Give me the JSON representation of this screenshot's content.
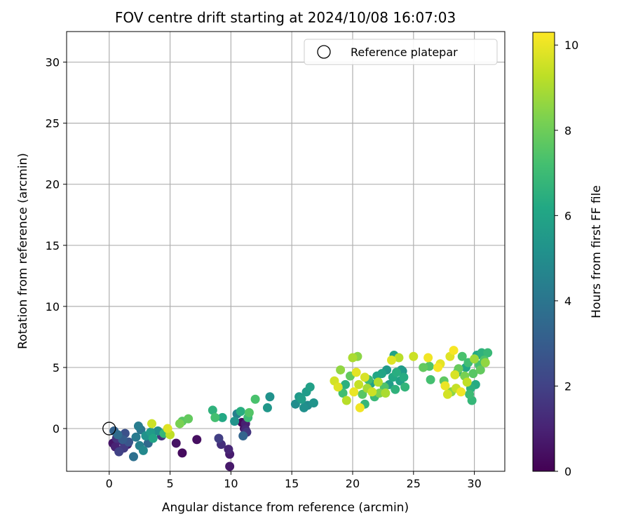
{
  "chart_data": {
    "type": "scatter",
    "title": "FOV centre drift starting at 2024/10/08 16:07:03",
    "xlabel": "Angular distance from reference (arcmin)",
    "ylabel": "Rotation from reference (arcmin)",
    "xlim": [
      -3.5,
      32.5
    ],
    "ylim": [
      -3.5,
      32.5
    ],
    "xticks": [
      0,
      5,
      10,
      15,
      20,
      25,
      30
    ],
    "yticks": [
      0,
      5,
      10,
      15,
      20,
      25,
      30
    ],
    "grid": true,
    "legend": {
      "position": "top-right",
      "entries": [
        "Reference platepar"
      ]
    },
    "reference_point": {
      "x": 0,
      "y": 0,
      "label": "Reference platepar"
    },
    "colorbar": {
      "label": "Hours from first FF file",
      "range": [
        0,
        10.3
      ],
      "ticks": [
        0,
        2,
        4,
        6,
        8,
        10
      ],
      "colormap": "viridis"
    },
    "points": [
      {
        "x": 0.3,
        "y": -1.2,
        "h": 0.6
      },
      {
        "x": 0.5,
        "y": -1.5,
        "h": 1.0
      },
      {
        "x": 0.6,
        "y": -0.8,
        "h": 1.5
      },
      {
        "x": 0.8,
        "y": -1.9,
        "h": 2.0
      },
      {
        "x": 1.0,
        "y": -1.0,
        "h": 1.2
      },
      {
        "x": 1.2,
        "y": -1.6,
        "h": 1.8
      },
      {
        "x": 1.3,
        "y": -0.4,
        "h": 2.5
      },
      {
        "x": 1.5,
        "y": -1.3,
        "h": 0.9
      },
      {
        "x": 0.4,
        "y": -0.2,
        "h": 3.2
      },
      {
        "x": 0.7,
        "y": -0.5,
        "h": 3.6
      },
      {
        "x": 1.1,
        "y": -0.9,
        "h": 3.0
      },
      {
        "x": 1.6,
        "y": -1.1,
        "h": 2.7
      },
      {
        "x": 2.0,
        "y": -2.3,
        "h": 3.8
      },
      {
        "x": 2.2,
        "y": -0.7,
        "h": 4.2
      },
      {
        "x": 2.5,
        "y": -1.4,
        "h": 4.5
      },
      {
        "x": 2.6,
        "y": -0.1,
        "h": 4.0
      },
      {
        "x": 2.8,
        "y": -1.8,
        "h": 4.8
      },
      {
        "x": 3.0,
        "y": -0.6,
        "h": 5.2
      },
      {
        "x": 3.2,
        "y": -1.2,
        "h": 3.5
      },
      {
        "x": 2.4,
        "y": 0.2,
        "h": 4.3
      },
      {
        "x": 3.4,
        "y": -0.3,
        "h": 5.6
      },
      {
        "x": 3.5,
        "y": 0.4,
        "h": 9.5
      },
      {
        "x": 3.6,
        "y": -0.8,
        "h": 6.0
      },
      {
        "x": 4.0,
        "y": -0.2,
        "h": 5.0
      },
      {
        "x": 4.3,
        "y": -0.6,
        "h": 1.5
      },
      {
        "x": 4.5,
        "y": -0.4,
        "h": 6.8
      },
      {
        "x": 4.8,
        "y": 0.0,
        "h": 9.8
      },
      {
        "x": 5.0,
        "y": -0.5,
        "h": 9.3
      },
      {
        "x": 5.5,
        "y": -1.2,
        "h": 0.5
      },
      {
        "x": 5.8,
        "y": 0.4,
        "h": 8.2
      },
      {
        "x": 6.0,
        "y": 0.6,
        "h": 7.6
      },
      {
        "x": 6.0,
        "y": -2.0,
        "h": 0.3
      },
      {
        "x": 6.5,
        "y": 0.8,
        "h": 7.8
      },
      {
        "x": 7.2,
        "y": -0.9,
        "h": 0.4
      },
      {
        "x": 8.5,
        "y": 1.5,
        "h": 6.6
      },
      {
        "x": 8.7,
        "y": 0.9,
        "h": 7.2
      },
      {
        "x": 9.0,
        "y": -0.8,
        "h": 1.9
      },
      {
        "x": 9.2,
        "y": -1.3,
        "h": 1.4
      },
      {
        "x": 9.3,
        "y": 0.9,
        "h": 6.2
      },
      {
        "x": 9.8,
        "y": -1.7,
        "h": 1.1
      },
      {
        "x": 9.9,
        "y": -2.1,
        "h": 0.8
      },
      {
        "x": 9.9,
        "y": -3.1,
        "h": 0.7
      },
      {
        "x": 10.3,
        "y": 0.6,
        "h": 5.3
      },
      {
        "x": 10.5,
        "y": 1.2,
        "h": 4.4
      },
      {
        "x": 10.8,
        "y": 1.4,
        "h": 6.4
      },
      {
        "x": 10.9,
        "y": 0.5,
        "h": 0.2
      },
      {
        "x": 11.0,
        "y": -0.6,
        "h": 3.3
      },
      {
        "x": 11.1,
        "y": 0.0,
        "h": 0.5
      },
      {
        "x": 11.2,
        "y": 0.4,
        "h": 0.9
      },
      {
        "x": 11.3,
        "y": -0.3,
        "h": 1.6
      },
      {
        "x": 11.4,
        "y": 0.9,
        "h": 7.0
      },
      {
        "x": 11.5,
        "y": 1.3,
        "h": 7.5
      },
      {
        "x": 11.2,
        "y": -0.1,
        "h": 1.2
      },
      {
        "x": 12.0,
        "y": 2.4,
        "h": 7.3
      },
      {
        "x": 13.0,
        "y": 1.7,
        "h": 5.4
      },
      {
        "x": 13.2,
        "y": 2.6,
        "h": 5.2
      },
      {
        "x": 15.3,
        "y": 2.0,
        "h": 5.0
      },
      {
        "x": 15.6,
        "y": 2.6,
        "h": 5.5
      },
      {
        "x": 16.0,
        "y": 1.7,
        "h": 5.1
      },
      {
        "x": 16.2,
        "y": 3.0,
        "h": 5.6
      },
      {
        "x": 16.5,
        "y": 3.4,
        "h": 5.8
      },
      {
        "x": 16.3,
        "y": 1.9,
        "h": 4.9
      },
      {
        "x": 16.8,
        "y": 2.1,
        "h": 5.3
      },
      {
        "x": 15.8,
        "y": 2.4,
        "h": 5.7
      },
      {
        "x": 18.5,
        "y": 3.9,
        "h": 9.6
      },
      {
        "x": 18.8,
        "y": 3.4,
        "h": 9.8
      },
      {
        "x": 19.0,
        "y": 4.8,
        "h": 8.6
      },
      {
        "x": 19.2,
        "y": 2.9,
        "h": 7.1
      },
      {
        "x": 19.4,
        "y": 3.6,
        "h": 6.5
      },
      {
        "x": 19.5,
        "y": 2.3,
        "h": 9.2
      },
      {
        "x": 19.8,
        "y": 4.3,
        "h": 7.8
      },
      {
        "x": 20.0,
        "y": 5.8,
        "h": 9.0
      },
      {
        "x": 20.1,
        "y": 3.0,
        "h": 10.0
      },
      {
        "x": 20.3,
        "y": 4.6,
        "h": 9.9
      },
      {
        "x": 20.4,
        "y": 5.9,
        "h": 8.5
      },
      {
        "x": 20.5,
        "y": 3.6,
        "h": 9.4
      },
      {
        "x": 20.6,
        "y": 1.7,
        "h": 10.1
      },
      {
        "x": 20.8,
        "y": 2.8,
        "h": 7.6
      },
      {
        "x": 21.0,
        "y": 4.2,
        "h": 9.7
      },
      {
        "x": 21.0,
        "y": 2.0,
        "h": 6.8
      },
      {
        "x": 21.2,
        "y": 3.3,
        "h": 8.9
      },
      {
        "x": 21.3,
        "y": 4.0,
        "h": 7.0
      },
      {
        "x": 21.5,
        "y": 3.7,
        "h": 5.9
      },
      {
        "x": 21.6,
        "y": 3.0,
        "h": 9.5
      },
      {
        "x": 21.8,
        "y": 2.6,
        "h": 6.9
      },
      {
        "x": 22.0,
        "y": 4.3,
        "h": 6.1
      },
      {
        "x": 22.1,
        "y": 3.8,
        "h": 9.1
      },
      {
        "x": 22.2,
        "y": 2.9,
        "h": 8.3
      },
      {
        "x": 22.4,
        "y": 4.5,
        "h": 6.0
      },
      {
        "x": 22.6,
        "y": 3.4,
        "h": 7.4
      },
      {
        "x": 22.8,
        "y": 4.8,
        "h": 5.5
      },
      {
        "x": 23.0,
        "y": 3.6,
        "h": 5.7
      },
      {
        "x": 23.2,
        "y": 5.6,
        "h": 9.8
      },
      {
        "x": 23.3,
        "y": 4.2,
        "h": 6.2
      },
      {
        "x": 23.4,
        "y": 6.0,
        "h": 5.9
      },
      {
        "x": 23.5,
        "y": 3.2,
        "h": 6.6
      },
      {
        "x": 23.6,
        "y": 4.6,
        "h": 6.4
      },
      {
        "x": 23.8,
        "y": 5.8,
        "h": 9.2
      },
      {
        "x": 23.9,
        "y": 3.9,
        "h": 5.8
      },
      {
        "x": 24.0,
        "y": 4.8,
        "h": 5.6
      },
      {
        "x": 24.2,
        "y": 4.2,
        "h": 6.3
      },
      {
        "x": 24.3,
        "y": 3.4,
        "h": 6.7
      },
      {
        "x": 25.0,
        "y": 5.9,
        "h": 9.5
      },
      {
        "x": 25.8,
        "y": 5.0,
        "h": 7.8
      },
      {
        "x": 26.2,
        "y": 5.8,
        "h": 10.1
      },
      {
        "x": 26.4,
        "y": 4.0,
        "h": 7.2
      },
      {
        "x": 26.3,
        "y": 5.1,
        "h": 7.5
      },
      {
        "x": 27.0,
        "y": 5.0,
        "h": 10.2
      },
      {
        "x": 27.2,
        "y": 5.3,
        "h": 9.9
      },
      {
        "x": 27.5,
        "y": 3.9,
        "h": 7.7
      },
      {
        "x": 27.6,
        "y": 3.5,
        "h": 10.0
      },
      {
        "x": 27.8,
        "y": 2.8,
        "h": 9.6
      },
      {
        "x": 28.0,
        "y": 5.9,
        "h": 9.8
      },
      {
        "x": 28.1,
        "y": 3.0,
        "h": 8.5
      },
      {
        "x": 28.3,
        "y": 6.4,
        "h": 10.2
      },
      {
        "x": 28.4,
        "y": 4.4,
        "h": 9.7
      },
      {
        "x": 28.5,
        "y": 3.3,
        "h": 9.4
      },
      {
        "x": 28.7,
        "y": 4.9,
        "h": 7.9
      },
      {
        "x": 28.9,
        "y": 3.0,
        "h": 10.1
      },
      {
        "x": 29.0,
        "y": 5.9,
        "h": 7.3
      },
      {
        "x": 29.2,
        "y": 4.3,
        "h": 8.2
      },
      {
        "x": 29.4,
        "y": 3.8,
        "h": 9.3
      },
      {
        "x": 29.5,
        "y": 5.4,
        "h": 7.1
      },
      {
        "x": 29.6,
        "y": 2.8,
        "h": 7.0
      },
      {
        "x": 29.7,
        "y": 3.3,
        "h": 6.5
      },
      {
        "x": 29.8,
        "y": 2.3,
        "h": 6.8
      },
      {
        "x": 29.9,
        "y": 4.5,
        "h": 7.6
      },
      {
        "x": 30.0,
        "y": 5.7,
        "h": 8.8
      },
      {
        "x": 30.1,
        "y": 3.6,
        "h": 6.3
      },
      {
        "x": 30.2,
        "y": 6.0,
        "h": 6.2
      },
      {
        "x": 30.4,
        "y": 5.2,
        "h": 7.2
      },
      {
        "x": 30.5,
        "y": 4.8,
        "h": 7.8
      },
      {
        "x": 30.6,
        "y": 6.2,
        "h": 6.6
      },
      {
        "x": 30.8,
        "y": 5.6,
        "h": 7.4
      },
      {
        "x": 30.9,
        "y": 5.4,
        "h": 8.6
      },
      {
        "x": 31.1,
        "y": 6.2,
        "h": 6.9
      },
      {
        "x": 28.6,
        "y": 4.6,
        "h": 6.4
      },
      {
        "x": 29.3,
        "y": 5.0,
        "h": 6.1
      },
      {
        "x": 24.1,
        "y": 4.7,
        "h": 5.3
      },
      {
        "x": 22.7,
        "y": 2.9,
        "h": 9.0
      }
    ]
  }
}
